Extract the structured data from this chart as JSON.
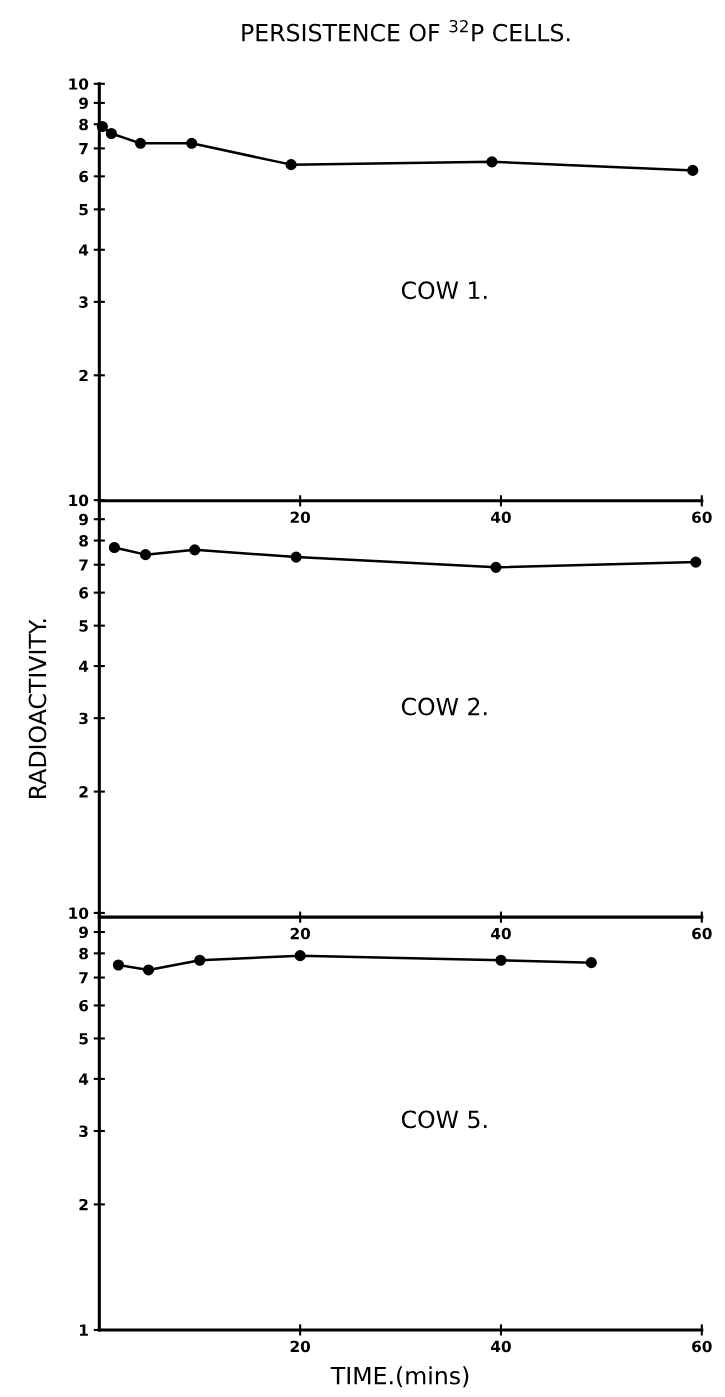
{
  "chart_data": [
    {
      "type": "line",
      "title": "PERSISTENCE OF $^{32}$P CELLS.",
      "annotations": [
        "COW 1."
      ],
      "log": "y",
      "marker": "circle",
      "line_style": "solid",
      "grid": false,
      "xlim": [
        0,
        60
      ],
      "xticks": [
        20,
        40,
        60
      ],
      "ylim": [
        1,
        10
      ],
      "yticks": [
        2,
        3,
        4,
        5,
        6,
        7,
        8,
        9,
        10
      ],
      "series": [
        {
          "color": "#000000",
          "x": [
            0.3,
            1.2,
            4.1,
            9.2,
            19.1,
            39.1,
            59.1
          ],
          "values": [
            7.9,
            7.6,
            7.2,
            7.2,
            6.4,
            6.5,
            6.2
          ]
        }
      ]
    },
    {
      "type": "line",
      "ylabel": "RADIOACTIVITY.",
      "annotations": [
        "COW 2."
      ],
      "log": "y",
      "marker": "circle",
      "line_style": "solid",
      "grid": false,
      "xlim": [
        0,
        60
      ],
      "xticks": [
        20,
        40,
        60
      ],
      "ylim": [
        1,
        10
      ],
      "yticks": [
        2,
        3,
        4,
        5,
        6,
        7,
        8,
        9,
        10
      ],
      "series": [
        {
          "color": "#000000",
          "x": [
            1.5,
            4.6,
            9.5,
            19.6,
            39.5,
            59.4
          ],
          "values": [
            7.7,
            7.4,
            7.6,
            7.3,
            6.9,
            7.1
          ]
        }
      ]
    },
    {
      "type": "line",
      "xlabel": "TIME.(mins)",
      "annotations": [
        "COW 5."
      ],
      "log": "y",
      "marker": "circle",
      "line_style": "solid",
      "grid": false,
      "xlim": [
        0,
        60
      ],
      "xticks": [
        20,
        40,
        60
      ],
      "ylim": [
        1,
        10
      ],
      "yticks": [
        1,
        2,
        3,
        4,
        5,
        6,
        7,
        8,
        9,
        10
      ],
      "series": [
        {
          "color": "#000000",
          "x": [
            1.9,
            4.9,
            10,
            20,
            40,
            49
          ],
          "values": [
            7.5,
            7.3,
            7.7,
            7.9,
            7.7,
            7.6
          ]
        }
      ]
    }
  ]
}
